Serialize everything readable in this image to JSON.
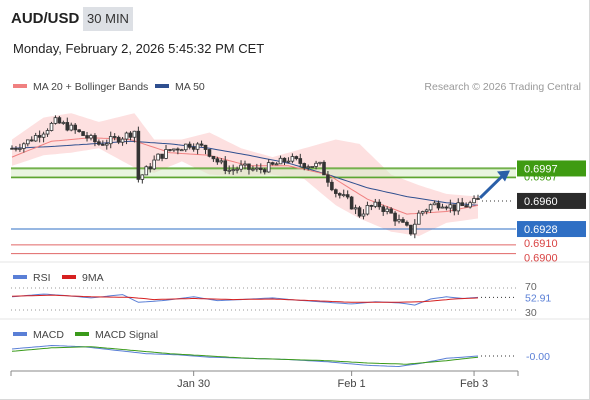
{
  "header": {
    "symbol": "AUD/USD",
    "timeframe": "30 MIN",
    "datetime": "Monday, February 2, 2026 5:45:32 PM CET"
  },
  "legend": {
    "ma20": {
      "label": "MA 20 + Bollinger Bands",
      "color": "#f08080"
    },
    "ma50": {
      "label": "MA 50",
      "color": "#2f4f8f"
    },
    "copyright": "Research © 2026 Trading Central"
  },
  "rsi_legend": {
    "rsi": {
      "label": "RSI",
      "color": "#5a7fd6"
    },
    "ma9": {
      "label": "9MA",
      "color": "#d62020"
    }
  },
  "macd_legend": {
    "macd": {
      "label": "MACD",
      "color": "#5a7fd6"
    },
    "signal": {
      "label": "MACD Signal",
      "color": "#3a9a1a"
    }
  },
  "chart_data": [
    {
      "type": "candlestick",
      "title": "AUD/USD",
      "x_tick_labels": [
        "Jan 30",
        "Feb 1",
        "Feb 3"
      ],
      "ylim": [
        0.6895,
        0.7075
      ],
      "price_labels": [
        {
          "text": "0.6997",
          "value": 0.6997,
          "style": "green-box"
        },
        {
          "text": "0.6987",
          "value": 0.6987,
          "style": "green-text"
        },
        {
          "text": "0.6960",
          "value": 0.696,
          "style": "dark-box"
        },
        {
          "text": "0.6928",
          "value": 0.6928,
          "style": "blue-box"
        },
        {
          "text": "0.6910",
          "value": 0.691,
          "style": "red-text"
        },
        {
          "text": "0.6900",
          "value": 0.69,
          "style": "red-text"
        }
      ],
      "levels": [
        {
          "value": 0.6997,
          "color": "#4a9a1a",
          "kind": "resistance"
        },
        {
          "value": 0.6987,
          "color": "#4a9a1a",
          "kind": "resistance"
        },
        {
          "value": 0.6928,
          "color": "#2f6fc4",
          "kind": "pivot"
        },
        {
          "value": 0.691,
          "color": "#e06666",
          "kind": "support"
        },
        {
          "value": 0.69,
          "color": "#e06666",
          "kind": "support"
        }
      ],
      "last_price": 0.696,
      "forecast_arrow": {
        "from": 0.696,
        "to": 0.6997,
        "color": "#2a5fa8"
      },
      "close_keypoints": [
        [
          0,
          0.702
        ],
        [
          4,
          0.7028
        ],
        [
          8,
          0.704
        ],
        [
          11,
          0.705
        ],
        [
          14,
          0.7045
        ],
        [
          18,
          0.7035
        ],
        [
          22,
          0.7025
        ],
        [
          26,
          0.703
        ],
        [
          29,
          0.7035
        ],
        [
          31,
          0.704
        ],
        [
          32,
          0.6985
        ],
        [
          34,
          0.6995
        ],
        [
          37,
          0.701
        ],
        [
          40,
          0.7018
        ],
        [
          43,
          0.7022
        ],
        [
          45,
          0.7025
        ],
        [
          49,
          0.702
        ],
        [
          52,
          0.7005
        ],
        [
          55,
          0.6995
        ],
        [
          58,
          0.6998
        ],
        [
          62,
          0.6995
        ],
        [
          66,
          0.7
        ],
        [
          70,
          0.7008
        ],
        [
          74,
          0.7002
        ],
        [
          78,
          0.7
        ],
        [
          80,
          0.6985
        ],
        [
          82,
          0.697
        ],
        [
          85,
          0.696
        ],
        [
          88,
          0.6945
        ],
        [
          90,
          0.6952
        ],
        [
          93,
          0.6955
        ],
        [
          96,
          0.6945
        ],
        [
          99,
          0.6932
        ],
        [
          101,
          0.6925
        ],
        [
          103,
          0.6945
        ],
        [
          106,
          0.6955
        ],
        [
          109,
          0.6958
        ],
        [
          112,
          0.6952
        ],
        [
          115,
          0.6955
        ],
        [
          118,
          0.696
        ]
      ],
      "ma20_keypoints": [
        [
          0,
          0.701
        ],
        [
          10,
          0.7028
        ],
        [
          20,
          0.7032
        ],
        [
          30,
          0.703
        ],
        [
          40,
          0.7015
        ],
        [
          50,
          0.7012
        ],
        [
          60,
          0.7
        ],
        [
          70,
          0.7
        ],
        [
          80,
          0.699
        ],
        [
          90,
          0.6962
        ],
        [
          100,
          0.6945
        ],
        [
          110,
          0.6948
        ],
        [
          118,
          0.6955
        ]
      ],
      "ma50_keypoints": [
        [
          0,
          0.702
        ],
        [
          10,
          0.7022
        ],
        [
          20,
          0.7025
        ],
        [
          30,
          0.7028
        ],
        [
          40,
          0.7025
        ],
        [
          50,
          0.702
        ],
        [
          60,
          0.7012
        ],
        [
          70,
          0.7003
        ],
        [
          80,
          0.699
        ],
        [
          90,
          0.6975
        ],
        [
          100,
          0.6965
        ],
        [
          110,
          0.6958
        ],
        [
          118,
          0.6955
        ]
      ],
      "bollinger_keypoints": [
        [
          0,
          0.7,
          0.703
        ],
        [
          8,
          0.7012,
          0.7055
        ],
        [
          15,
          0.7015,
          0.706
        ],
        [
          22,
          0.702,
          0.705
        ],
        [
          31,
          0.6998,
          0.706
        ],
        [
          36,
          0.6992,
          0.703
        ],
        [
          43,
          0.7005,
          0.703
        ],
        [
          50,
          0.699,
          0.7038
        ],
        [
          58,
          0.6988,
          0.702
        ],
        [
          66,
          0.699,
          0.701
        ],
        [
          74,
          0.6985,
          0.702
        ],
        [
          82,
          0.6955,
          0.703
        ],
        [
          88,
          0.694,
          0.7025
        ],
        [
          96,
          0.6925,
          0.699
        ],
        [
          103,
          0.692,
          0.6978
        ],
        [
          110,
          0.6935,
          0.6968
        ],
        [
          118,
          0.694,
          0.6965
        ]
      ]
    },
    {
      "type": "line",
      "title": "RSI",
      "levels": [
        {
          "value": 70,
          "label": "70"
        },
        {
          "value": 30,
          "label": "30"
        }
      ],
      "last_value_label": "52.91",
      "ylim": [
        30,
        70
      ],
      "series": [
        {
          "name": "RSI",
          "color": "#5a7fd6",
          "keypoints": [
            [
              0,
              54
            ],
            [
              8,
              59
            ],
            [
              14,
              56
            ],
            [
              20,
              52
            ],
            [
              28,
              58
            ],
            [
              32,
              44
            ],
            [
              38,
              47
            ],
            [
              46,
              54
            ],
            [
              52,
              47
            ],
            [
              58,
              49
            ],
            [
              66,
              52
            ],
            [
              72,
              48
            ],
            [
              80,
              44
            ],
            [
              86,
              41
            ],
            [
              92,
              45
            ],
            [
              98,
              43
            ],
            [
              102,
              39
            ],
            [
              106,
              50
            ],
            [
              110,
              54
            ],
            [
              114,
              51
            ],
            [
              118,
              53
            ]
          ]
        },
        {
          "name": "9MA",
          "color": "#d62020",
          "keypoints": [
            [
              0,
              55
            ],
            [
              10,
              57
            ],
            [
              20,
              54
            ],
            [
              30,
              53
            ],
            [
              36,
              49
            ],
            [
              46,
              51
            ],
            [
              56,
              49
            ],
            [
              66,
              50
            ],
            [
              76,
              47
            ],
            [
              86,
              44
            ],
            [
              96,
              44
            ],
            [
              104,
              45
            ],
            [
              112,
              50
            ],
            [
              118,
              52
            ]
          ]
        }
      ]
    },
    {
      "type": "line",
      "title": "MACD",
      "last_value_label": "-0.00",
      "ylim": [
        -0.0012,
        0.0012
      ],
      "series": [
        {
          "name": "MACD",
          "color": "#5a7fd6",
          "keypoints": [
            [
              0,
              0.0006
            ],
            [
              10,
              0.0009
            ],
            [
              18,
              0.0008
            ],
            [
              26,
              0.0005
            ],
            [
              34,
              0.0002
            ],
            [
              42,
              0.0001
            ],
            [
              50,
              -0.0001
            ],
            [
              60,
              -0.0002
            ],
            [
              70,
              -0.0003
            ],
            [
              80,
              -0.0005
            ],
            [
              90,
              -0.0008
            ],
            [
              98,
              -0.0009
            ],
            [
              104,
              -0.0006
            ],
            [
              110,
              -0.0002
            ],
            [
              118,
              0.0
            ]
          ]
        },
        {
          "name": "MACD Signal",
          "color": "#3a9a1a",
          "keypoints": [
            [
              0,
              0.0004
            ],
            [
              10,
              0.0007
            ],
            [
              20,
              0.0008
            ],
            [
              30,
              0.0005
            ],
            [
              40,
              0.0002
            ],
            [
              50,
              0.0
            ],
            [
              60,
              -0.0002
            ],
            [
              70,
              -0.0003
            ],
            [
              80,
              -0.0004
            ],
            [
              90,
              -0.0006
            ],
            [
              100,
              -0.0007
            ],
            [
              110,
              -0.0004
            ],
            [
              118,
              -0.0001
            ]
          ]
        }
      ]
    }
  ]
}
